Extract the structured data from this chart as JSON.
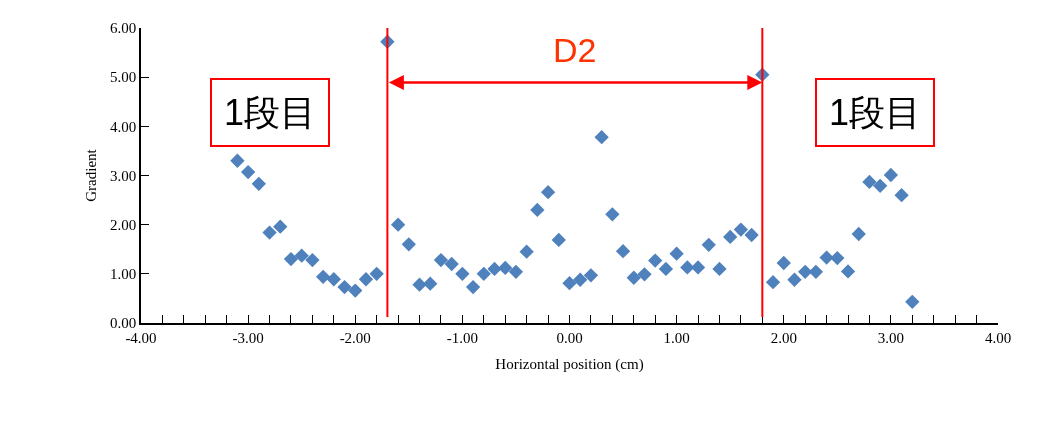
{
  "chart_data": {
    "type": "scatter",
    "xlabel": "Horizontal position (cm)",
    "ylabel": "Gradient",
    "x": [
      -3.1,
      -3.0,
      -2.9,
      -2.8,
      -2.7,
      -2.6,
      -2.5,
      -2.4,
      -2.3,
      -2.2,
      -2.1,
      -2.0,
      -1.9,
      -1.8,
      -1.7,
      -1.6,
      -1.5,
      -1.4,
      -1.3,
      -1.2,
      -1.1,
      -1.0,
      -0.9,
      -0.8,
      -0.7,
      -0.6,
      -0.5,
      -0.4,
      -0.3,
      -0.2,
      -0.1,
      0.0,
      0.1,
      0.2,
      0.3,
      0.4,
      0.5,
      0.6,
      0.7,
      0.8,
      0.9,
      1.0,
      1.1,
      1.2,
      1.3,
      1.4,
      1.5,
      1.6,
      1.7,
      1.8,
      1.9,
      2.0,
      2.1,
      2.2,
      2.3,
      2.4,
      2.5,
      2.6,
      2.7,
      2.8,
      2.9,
      3.0,
      3.1,
      3.2
    ],
    "values": [
      3.3,
      3.07,
      2.83,
      1.84,
      1.96,
      1.3,
      1.37,
      1.28,
      0.94,
      0.89,
      0.73,
      0.66,
      0.89,
      1.0,
      5.72,
      2.0,
      1.6,
      0.78,
      0.8,
      1.28,
      1.2,
      1.0,
      0.73,
      1.0,
      1.1,
      1.12,
      1.04,
      1.45,
      2.3,
      2.66,
      1.69,
      0.81,
      0.88,
      0.97,
      3.78,
      2.21,
      1.46,
      0.92,
      0.99,
      1.27,
      1.1,
      1.41,
      1.13,
      1.13,
      1.59,
      1.1,
      1.75,
      1.9,
      1.79,
      5.05,
      0.83,
      1.22,
      0.88,
      1.04,
      1.04,
      1.33,
      1.32,
      1.05,
      1.81,
      2.87,
      2.79,
      3.01,
      2.6,
      0.43
    ],
    "color": "#4f81bd",
    "marker": "diamond",
    "xlim": [
      -4,
      4
    ],
    "xticks": [
      {
        "value": -4,
        "label": "-4.00"
      },
      {
        "value": -3,
        "label": "-3.00"
      },
      {
        "value": -2,
        "label": "-2.00"
      },
      {
        "value": -1,
        "label": "-1.00"
      },
      {
        "value": 0,
        "label": "0.00"
      },
      {
        "value": 1,
        "label": "1.00"
      },
      {
        "value": 2,
        "label": "2.00"
      },
      {
        "value": 3,
        "label": "3.00"
      },
      {
        "value": 4,
        "label": "4.00"
      }
    ],
    "ylim": [
      0,
      6
    ],
    "yticks": [
      {
        "value": 0,
        "label": "0.00"
      },
      {
        "value": 1,
        "label": "1.00"
      },
      {
        "value": 2,
        "label": "2.00"
      },
      {
        "value": 3,
        "label": "3.00"
      },
      {
        "value": 4,
        "label": "4.00"
      },
      {
        "value": 5,
        "label": "5.00"
      },
      {
        "value": 6,
        "label": "6.00"
      }
    ],
    "ref_lines": [
      {
        "axis": "x",
        "value": -1.7,
        "color": "#ff0000"
      },
      {
        "axis": "x",
        "value": 1.8,
        "color": "#ff0000"
      }
    ],
    "annotations": [
      "1段目",
      "D2",
      "1段目"
    ],
    "grid": false,
    "legend": false
  }
}
